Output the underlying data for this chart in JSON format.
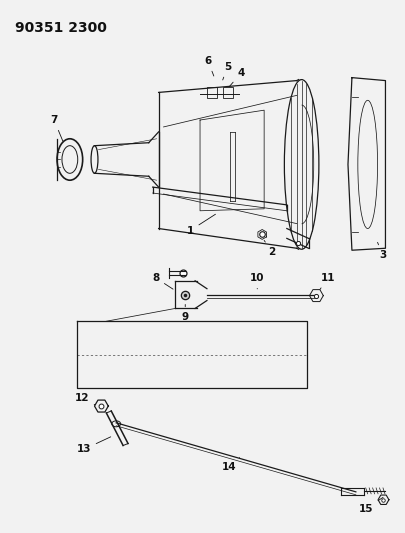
{
  "title": "90351 2300",
  "bg_color": "#f2f2f2",
  "line_color": "#1a1a1a",
  "label_color": "#111111",
  "title_fontsize": 10,
  "label_fontsize": 7.5,
  "figsize": [
    4.05,
    5.33
  ],
  "dpi": 100
}
